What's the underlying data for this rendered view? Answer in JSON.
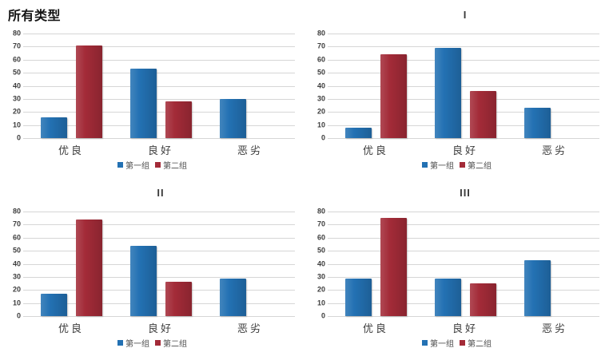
{
  "page": {
    "background": "#ffffff"
  },
  "axis": {
    "ymin": 0,
    "ymax": 80,
    "ystep": 10,
    "tick_color": "#3d3d3d",
    "grid_color": "#d6d6d6"
  },
  "series_colors": {
    "group1_blue": "#2371b3",
    "group2_red": "#a32b38"
  },
  "chart_data": [
    {
      "type": "bar",
      "title": "所有类型",
      "title_align": "left",
      "categories": [
        "优良",
        "良好",
        "恶劣"
      ],
      "series": [
        {
          "name": "第一组",
          "color": "#2371b3",
          "values": [
            16,
            53,
            30
          ]
        },
        {
          "name": "第二组",
          "color": "#a32b38",
          "values": [
            71,
            28,
            null
          ]
        }
      ],
      "ylim": [
        0,
        80
      ],
      "ystep": 10,
      "grid": true,
      "legend_position": "bottom"
    },
    {
      "type": "bar",
      "title": "I",
      "title_align": "center",
      "categories": [
        "优良",
        "良好",
        "恶劣"
      ],
      "series": [
        {
          "name": "第一组",
          "color": "#2371b3",
          "values": [
            8,
            69,
            23
          ]
        },
        {
          "name": "第二组",
          "color": "#a32b38",
          "values": [
            64,
            36,
            null
          ]
        }
      ],
      "ylim": [
        0,
        80
      ],
      "ystep": 10,
      "grid": true,
      "legend_position": "bottom"
    },
    {
      "type": "bar",
      "title": "II",
      "title_align": "center",
      "categories": [
        "优良",
        "良好",
        "恶劣"
      ],
      "series": [
        {
          "name": "第一组",
          "color": "#2371b3",
          "values": [
            17,
            54,
            29
          ]
        },
        {
          "name": "第二组",
          "color": "#a32b38",
          "values": [
            74,
            26,
            null
          ]
        }
      ],
      "ylim": [
        0,
        80
      ],
      "ystep": 10,
      "grid": true,
      "legend_position": "bottom"
    },
    {
      "type": "bar",
      "title": "III",
      "title_align": "center",
      "categories": [
        "优良",
        "良好",
        "恶劣"
      ],
      "series": [
        {
          "name": "第一组",
          "color": "#2371b3",
          "values": [
            29,
            28.5,
            43
          ]
        },
        {
          "name": "第二组",
          "color": "#a32b38",
          "values": [
            75,
            25,
            null
          ]
        }
      ],
      "ylim": [
        0,
        80
      ],
      "ystep": 10,
      "grid": true,
      "legend_position": "bottom"
    }
  ]
}
